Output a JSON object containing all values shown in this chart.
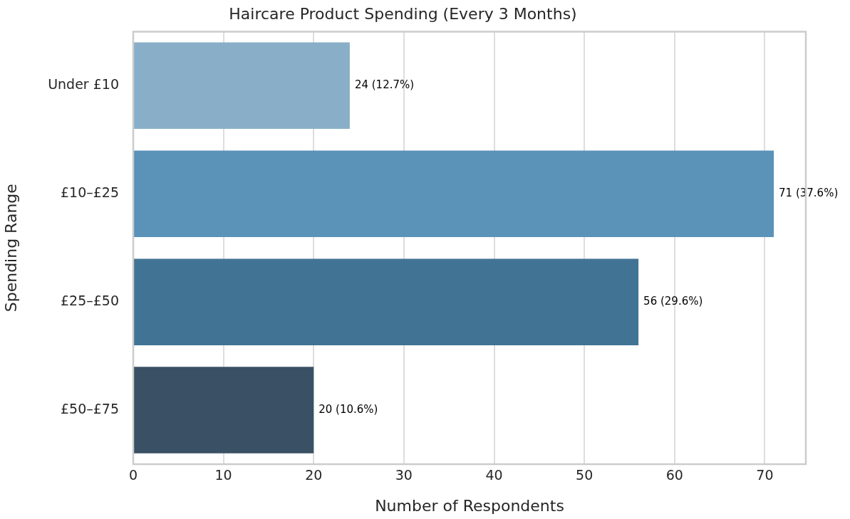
{
  "chart_data": {
    "type": "bar",
    "orientation": "horizontal",
    "title": "Haircare Product Spending (Every 3 Months)",
    "xlabel": "Number of Respondents",
    "ylabel": "Spending Range",
    "categories": [
      "Under £10",
      "£10–£25",
      "£25–£50",
      "£50–£75"
    ],
    "values": [
      24,
      71,
      56,
      20
    ],
    "colors": [
      "#89afc8",
      "#5b92b8",
      "#417394",
      "#3a5064"
    ],
    "value_labels": [
      "24 (12.7%)",
      "71 (37.6%)",
      "56 (29.6%)",
      "20 (10.6%)"
    ],
    "xlim": [
      0,
      74.55
    ],
    "xticks": [
      0,
      10,
      20,
      30,
      40,
      50,
      60,
      70
    ],
    "grid": "x",
    "legend": false
  }
}
